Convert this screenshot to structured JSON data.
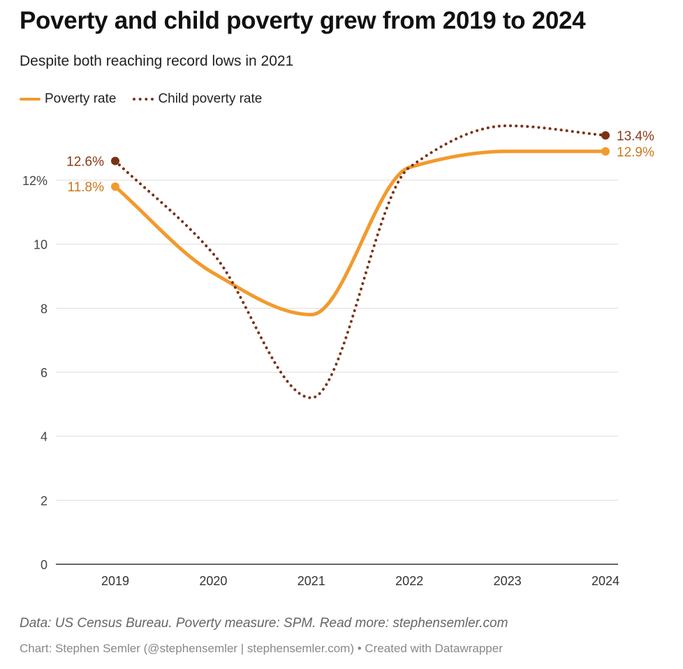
{
  "title": "Poverty and child poverty grew from 2019 to 2024",
  "subtitle": "Despite both reaching record lows in 2021",
  "legend": {
    "poverty": "Poverty rate",
    "child": "Child poverty rate"
  },
  "colors": {
    "poverty": "#f29a2e",
    "child": "#7a3214",
    "poverty_label": "#c8781c",
    "child_label": "#8a3a17"
  },
  "footer": {
    "source": "Data: US Census Bureau. Poverty measure: SPM. Read more: stephensemler.com",
    "credit": "Chart: Stephen Semler (@stephensemler | stephensemler.com) • Created with Datawrapper"
  },
  "chart_data": {
    "type": "line",
    "title": "Poverty and child poverty grew from 2019 to 2024",
    "x": [
      2019,
      2020,
      2021,
      2022,
      2023,
      2024
    ],
    "x_tick_labels": [
      "2019",
      "2020",
      "2021",
      "2022",
      "2023",
      "2024"
    ],
    "y_ticks": [
      0,
      2,
      4,
      6,
      8,
      10,
      12
    ],
    "y_tick_labels": [
      "0",
      "2",
      "4",
      "6",
      "8",
      "10",
      "12%"
    ],
    "ylim": [
      0,
      13.9
    ],
    "grid": true,
    "legend_position": "top-left",
    "series": [
      {
        "name": "Poverty rate",
        "values": [
          11.8,
          9.1,
          7.8,
          12.4,
          12.9,
          12.9
        ],
        "start_label": "11.8%",
        "end_label": "12.9%"
      },
      {
        "name": "Child poverty rate",
        "values": [
          12.6,
          9.7,
          5.2,
          12.4,
          13.7,
          13.4
        ],
        "start_label": "12.6%",
        "end_label": "13.4%"
      }
    ]
  }
}
